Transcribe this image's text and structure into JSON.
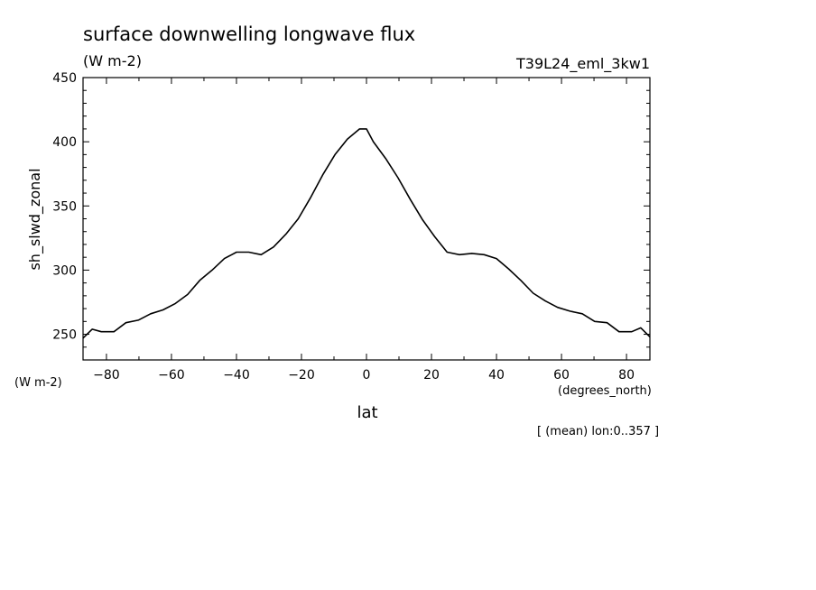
{
  "chart_data": {
    "type": "line",
    "title": "surface downwelling longwave flux",
    "title_units": "(W m-2)",
    "run_label": "T39L24_eml_3kw1",
    "ylabel": "sh_slwd_zonal",
    "y_units_label": "(W m-2)",
    "xlabel": "lat",
    "x_units_label": "(degrees_north)",
    "footnote": "[ (mean) lon:0..357 ]",
    "xlim": [
      -87.2,
      87.2
    ],
    "ylim": [
      230,
      450
    ],
    "x_ticks": [
      -80,
      -60,
      -40,
      -20,
      0,
      20,
      40,
      60,
      80
    ],
    "x_tick_labels": [
      "-80",
      "-60",
      "-40",
      "-20",
      "0",
      "20",
      "40",
      "60",
      "80"
    ],
    "y_ticks": [
      250,
      300,
      350,
      400,
      450
    ],
    "y_tick_labels": [
      "250",
      "300",
      "350",
      "400",
      "450"
    ],
    "grid": false,
    "series": [
      {
        "x": [
          -87.2,
          -84.4,
          -81.6,
          -77.7,
          -74.0,
          -70.2,
          -66.4,
          -62.6,
          -58.8,
          -55.0,
          -51.3,
          -47.5,
          -43.7,
          -40.0,
          -36.2,
          -32.4,
          -28.6,
          -24.8,
          -21.0,
          -17.3,
          -13.5,
          -9.7,
          -5.9,
          -2.1,
          0.0,
          2.1,
          5.9,
          9.7,
          13.5,
          17.3,
          21.0,
          24.8,
          28.6,
          32.4,
          36.2,
          40.0,
          43.7,
          47.5,
          51.3,
          55.0,
          58.8,
          62.6,
          66.4,
          70.2,
          74.0,
          77.7,
          81.6,
          84.4,
          87.2
        ],
        "values": [
          247,
          254,
          252,
          252,
          259,
          261,
          266,
          269,
          274,
          281,
          292,
          300,
          309,
          314,
          314,
          312,
          318,
          328,
          340,
          356,
          374,
          390,
          402,
          410,
          410,
          400,
          387,
          372,
          355,
          339,
          326,
          314,
          312,
          313,
          312,
          309,
          301,
          292,
          282,
          276,
          271,
          268,
          266,
          260,
          259,
          252,
          252,
          255,
          248
        ]
      }
    ]
  }
}
